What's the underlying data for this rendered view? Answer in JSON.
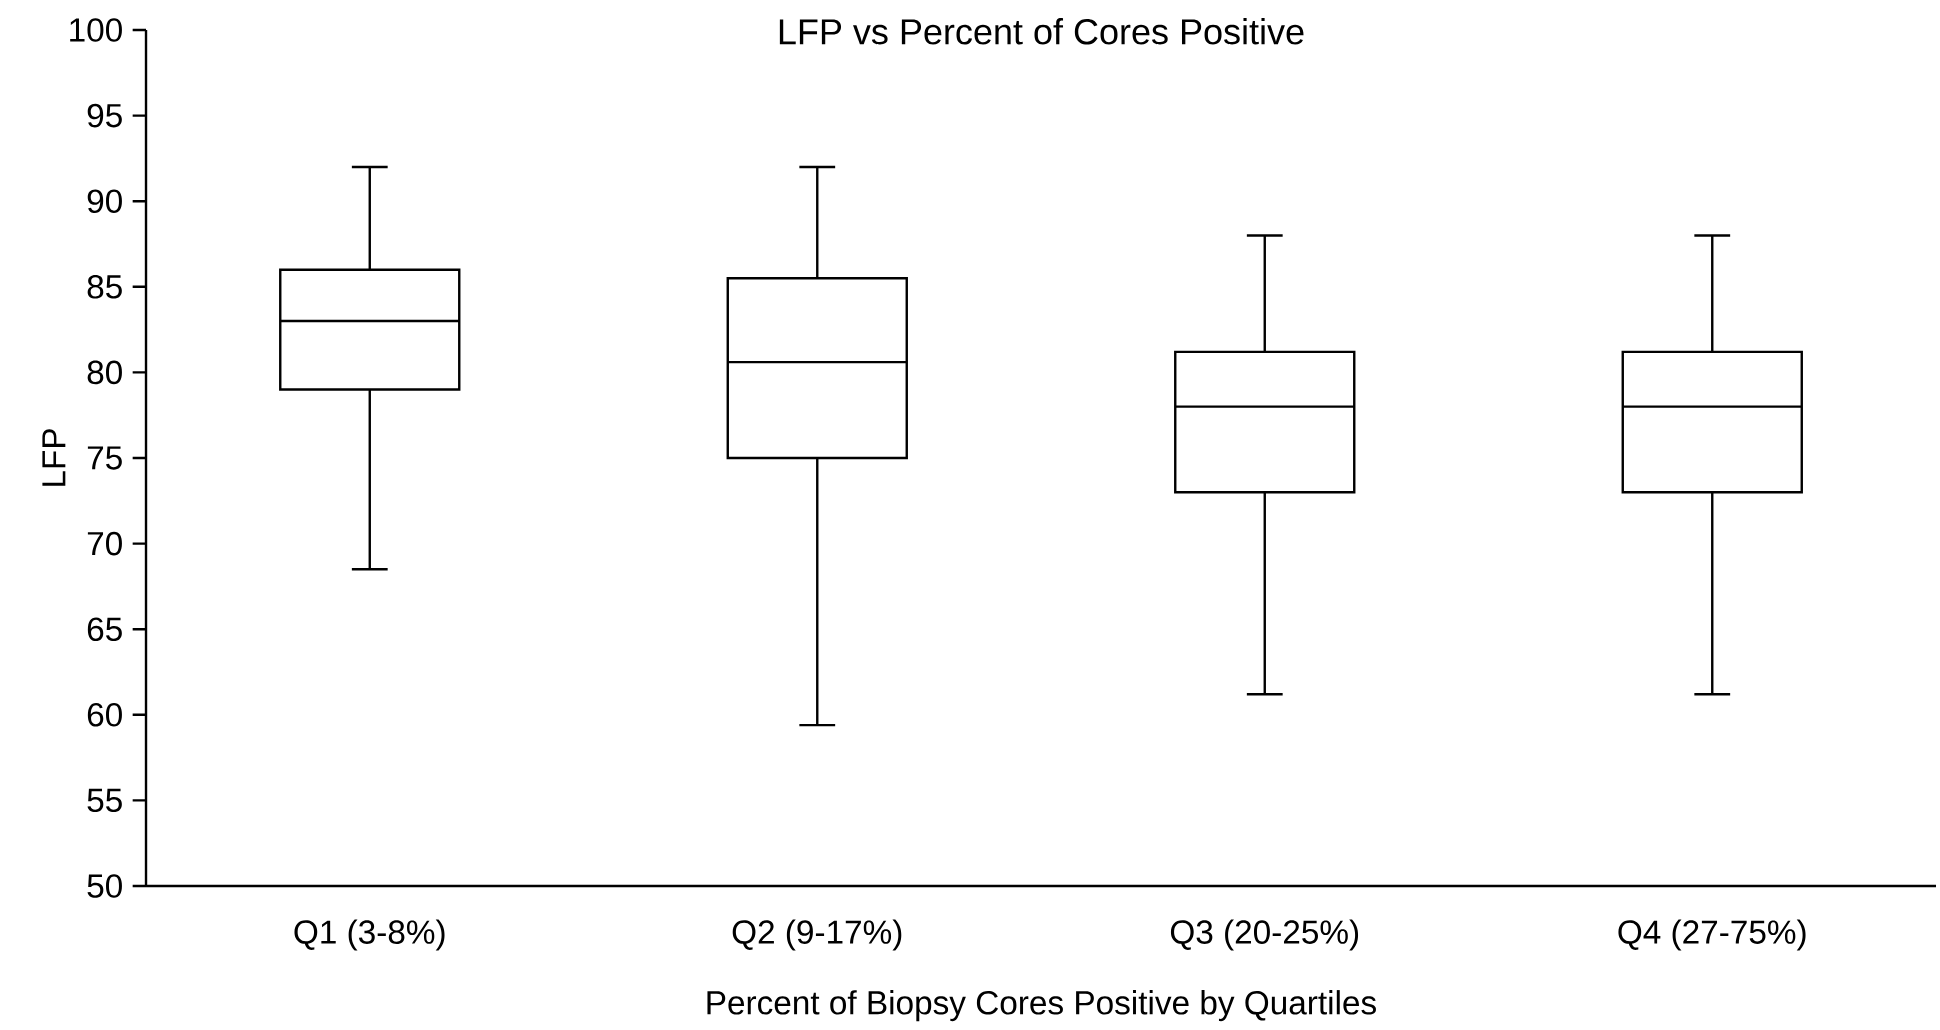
{
  "chart_data": {
    "type": "box",
    "title": "LFP vs Percent of Cores Positive",
    "xlabel": "Percent of Biopsy Cores Positive by Quartiles",
    "ylabel": "LFP",
    "categories": [
      "Q1 (3-8%)",
      "Q2 (9-17%)",
      "Q3 (20-25%)",
      "Q4 (27-75%)"
    ],
    "boxes": [
      {
        "low": 68.5,
        "q1": 79,
        "median": 83,
        "q3": 86,
        "high": 92
      },
      {
        "low": 59.4,
        "q1": 75,
        "median": 80.6,
        "q3": 85.5,
        "high": 92
      },
      {
        "low": 61.2,
        "q1": 73,
        "median": 78,
        "q3": 81.2,
        "high": 88
      },
      {
        "low": 61.2,
        "q1": 73,
        "median": 78,
        "q3": 81.2,
        "high": 88
      }
    ],
    "color": "#000000",
    "ylim": [
      50,
      100
    ],
    "yticks": [
      50,
      55,
      60,
      65,
      70,
      75,
      80,
      85,
      90,
      95,
      100
    ]
  }
}
